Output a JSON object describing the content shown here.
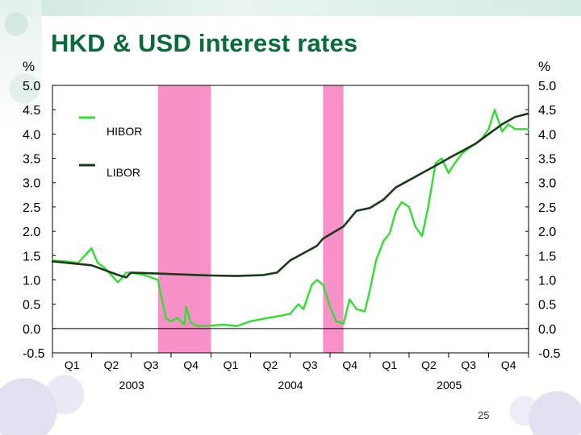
{
  "slide": {
    "title": "HKD & USD interest rates",
    "page_number": "25"
  },
  "colors": {
    "hibor": "#33dd33",
    "libor": "#1a3a1a",
    "shade": "#f791c8",
    "title": "#0a6b3a"
  },
  "chart_data": {
    "type": "line",
    "title": "HKD & USD interest rates",
    "ylabel_left": "%",
    "ylabel_right": "%",
    "ylim": [
      -0.5,
      5.0
    ],
    "yticks": [
      -0.5,
      0.0,
      0.5,
      1.0,
      1.5,
      2.0,
      2.5,
      3.0,
      3.5,
      4.0,
      4.5,
      5.0
    ],
    "ytick_labels": [
      "-0.5",
      "0.0",
      "0.5",
      "1.0",
      "1.5",
      "2.0",
      "2.5",
      "3.0",
      "3.5",
      "4.0",
      "4.5",
      "5.0"
    ],
    "xlim": [
      "2003-01-01",
      "2006-01-01"
    ],
    "quarter_labels": [
      "Q1",
      "Q2",
      "Q3",
      "Q4",
      "Q1",
      "Q2",
      "Q3",
      "Q4",
      "Q1",
      "Q2",
      "Q3",
      "Q4"
    ],
    "year_labels": [
      "2003",
      "2004",
      "2005"
    ],
    "shaded_periods": [
      [
        "2003-09-01",
        "2004-01-01"
      ],
      [
        "2004-09-15",
        "2004-11-01"
      ]
    ],
    "legend": [
      "HIBOR",
      "LIBOR"
    ],
    "series": [
      {
        "name": "HIBOR",
        "x": [
          "2003-01-01",
          "2003-02-01",
          "2003-03-01",
          "2003-04-01",
          "2003-04-15",
          "2003-05-01",
          "2003-06-01",
          "2003-06-20",
          "2003-07-01",
          "2003-08-01",
          "2003-09-01",
          "2003-09-10",
          "2003-09-20",
          "2003-10-01",
          "2003-10-15",
          "2003-11-01",
          "2003-11-05",
          "2003-11-15",
          "2003-12-01",
          "2004-01-01",
          "2004-02-01",
          "2004-03-01",
          "2004-04-01",
          "2004-05-01",
          "2004-06-01",
          "2004-07-01",
          "2004-07-20",
          "2004-08-01",
          "2004-08-20",
          "2004-09-01",
          "2004-09-15",
          "2004-10-01",
          "2004-10-15",
          "2004-11-01",
          "2004-11-15",
          "2004-12-01",
          "2004-12-20",
          "2005-01-01",
          "2005-01-15",
          "2005-02-01",
          "2005-02-15",
          "2005-03-01",
          "2005-03-15",
          "2005-04-01",
          "2005-04-15",
          "2005-05-01",
          "2005-05-15",
          "2005-06-01",
          "2005-06-15",
          "2005-07-01",
          "2005-07-15",
          "2005-08-01",
          "2005-08-15",
          "2005-09-01",
          "2005-09-15",
          "2005-10-01",
          "2005-10-15",
          "2005-11-01",
          "2005-11-15",
          "2005-12-01",
          "2005-12-31"
        ],
        "values": [
          1.4,
          1.38,
          1.35,
          1.65,
          1.35,
          1.25,
          0.95,
          1.15,
          1.15,
          1.1,
          1.0,
          0.6,
          0.2,
          0.15,
          0.22,
          0.08,
          0.45,
          0.12,
          0.05,
          0.06,
          0.08,
          0.05,
          0.15,
          0.2,
          0.25,
          0.3,
          0.5,
          0.4,
          0.9,
          1.0,
          0.9,
          0.45,
          0.15,
          0.1,
          0.6,
          0.4,
          0.35,
          0.8,
          1.4,
          1.8,
          1.95,
          2.4,
          2.6,
          2.5,
          2.1,
          1.9,
          2.5,
          3.4,
          3.5,
          3.2,
          3.4,
          3.6,
          3.7,
          3.8,
          3.9,
          4.1,
          4.5,
          4.05,
          4.2,
          4.1,
          4.1
        ]
      },
      {
        "name": "LIBOR",
        "x": [
          "2003-01-01",
          "2003-04-01",
          "2003-06-01",
          "2003-06-20",
          "2003-07-01",
          "2003-09-01",
          "2004-01-01",
          "2004-03-01",
          "2004-05-01",
          "2004-06-01",
          "2004-07-01",
          "2004-09-01",
          "2004-09-15",
          "2004-11-01",
          "2004-12-01",
          "2005-01-01",
          "2005-02-01",
          "2005-03-01",
          "2005-04-01",
          "2005-05-01",
          "2005-06-01",
          "2005-07-01",
          "2005-08-01",
          "2005-09-01",
          "2005-10-01",
          "2005-11-01",
          "2005-12-01",
          "2005-12-31"
        ],
        "values": [
          1.38,
          1.3,
          1.1,
          1.05,
          1.15,
          1.13,
          1.09,
          1.08,
          1.1,
          1.15,
          1.4,
          1.7,
          1.85,
          2.1,
          2.42,
          2.48,
          2.65,
          2.9,
          3.05,
          3.2,
          3.35,
          3.5,
          3.65,
          3.8,
          4.0,
          4.2,
          4.35,
          4.42
        ]
      }
    ]
  }
}
